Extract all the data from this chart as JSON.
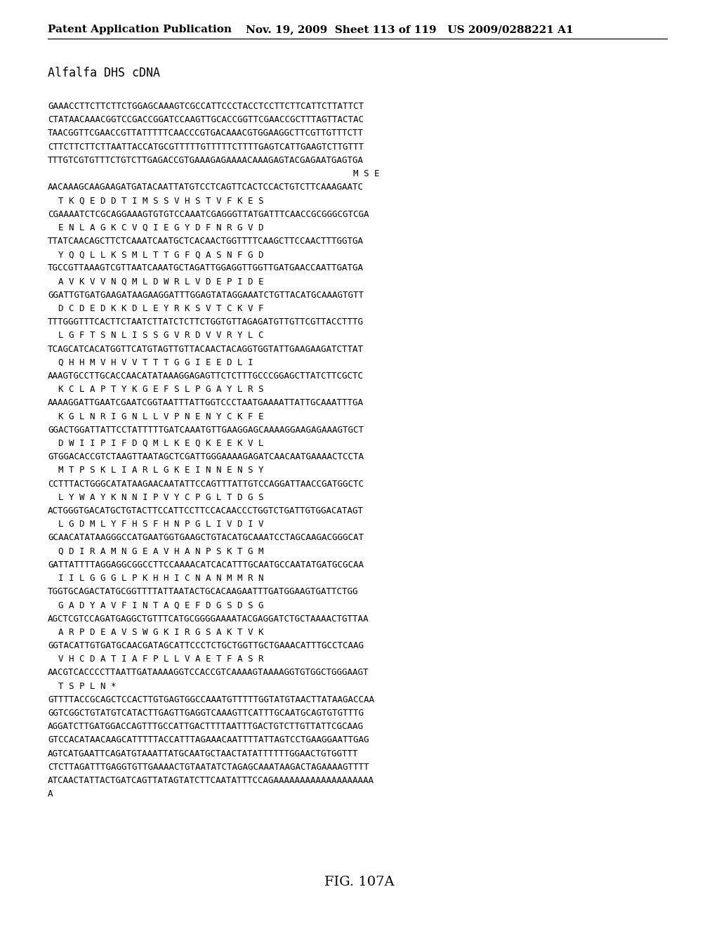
{
  "header_left": "Patent Application Publication",
  "header_right": "Nov. 19, 2009  Sheet 113 of 119   US 2009/0288221 A1",
  "title": "Alfalfa DHS cDNA",
  "figure_label": "FIG. 107A",
  "content_lines": [
    "GAAACCTTCTTCTTCTGGAGCAAAGTCGCCATTCCCTACCTCCTTCTTCATTCTTATTCT",
    "CTATAACAAACGGTCCGACCGGATCCAAGTTGCACCGGTTCGAACCGCTTTAGTTACTAC",
    "TAACGGTTCGAACCGTTATTTTTCAACCCGTGACAAACGTGGAAGGCTTCGTTGTTTCTT",
    "CTTCTTCTTCTTAATTACCATGCGTTTTTGTTTTTCTTTTGAGTCATTGAAGTCTTGTTT",
    "TTTGTCGTGTTTCTGTCTTGAGACCGTGAAAGAGAAAACAAAGAGTACGAGAATGAGTGA",
    "                                                          M S E",
    "AACAAAGCAAGAAGATGATACAATTATGTCCTCAGTTCACTCCACTGTCTTCAAAGAATC",
    "  T K Q E D D T I M S S V H S T V F K E S",
    "CGAAAATCTCGCAGGAAAGTGTGTCCAAATCGAGGGTTATGATTTCAACCGCGGGCGTCGA",
    "  E N L A G K C V Q I E G Y D F N R G V D",
    "TTATCAACAGCTTCTCAAATCAATGCTCACAACTGGTTTTCAAGCTTCCAACTTTGGTGA",
    "  Y Q Q L L K S M L T T G F Q A S N F G D",
    "TGCCGTTAAAGTCGTTAATCAAATGCTAGATTGGAGGTTGGTTGATGAACCAATTGATGA",
    "  A V K V V N Q M L D W R L V D E P I D E",
    "GGATTGTGATGAAGATAAGAAGGATTTGGAGTATAGGAAATCTGTTACATGCAAAGTGTT",
    "  D C D E D K K D L E Y R K S V T C K V F",
    "TTTGGGTTTCACTTCTAATCTTATCTCTTCTGGTGTTAGAGATGTTGTTCGTTACCTTTG",
    "  L G F T S N L I S S G V R D V V R Y L C",
    "TCAGCATCACATGGTTCATGTAGTTGTTACAACTACAGGTGGTATTGAAGAAGATCTTAT",
    "  Q H H M V H V V T T T G G I E E D L I",
    "AAAGTGCCTTGCACCAACATATAAAGGAGAGTTCTCTTTGCCCGGAGCTTATCTTCGCTC",
    "  K C L A P T Y K G E F S L P G A Y L R S",
    "AAAAGGATTGAATCGAATCGGTAATTTATTGGTCCCTAATGAAAATTATTGCAAATTTGA",
    "  K G L N R I G N L L V P N E N Y C K F E",
    "GGACTGGATTATTCCTATTTTTGATCAAATGTTGAAGGAGCAAAAGGAAGAGAAAGTGCT",
    "  D W I I P I F D Q M L K E Q K E E K V L",
    "GTGGACACCGTCTAAGTTAATAGCTCGATTGGGAAAAGAGATCAACAATGAAAACTCCTA",
    "  M T P S K L I A R L G K E I N N E N S Y",
    "CCTTTACTGGGCATATAAGAACAATATTCCAGTTTATTGTCCAGGATTAACCGATGGCTC",
    "  L Y W A Y K N N I P V Y C P G L T D G S",
    "ACTGGGTGACATGCTGTACTTCCATTCCTTCCACAACCCTGGTCTGATTGTGGACATAGT",
    "  L G D M L Y F H S F H N P G L I V D I V",
    "GCAACATATAAGGGCCATGAATGGTGAAGCTGTACATGCAAATCCTAGCAAGACGGGCAT",
    "  Q D I R A M N G E A V H A N P S K T G M",
    "GATTATTTTAGGAGGCGGCCTTCCAAAACATCACATTTGCAATGCCAATATGATGCGCAA",
    "  I I L G G G L P K H H I C N A N M M R N",
    "TGGTGCAGACTATGCGGTTTTATTAATACTGCACAAGAATTTGATGGAAGTGATTCTGG",
    "  G A D Y A V F I N T A Q E F D G S D S G",
    "AGCTCGTCCAGATGAGGCTGTTTCATGCGGGGAAAATACGAGGATCTGCTAAAACTGTTAA",
    "  A R P D E A V S W G K I R G S A K T V K",
    "GGTACATTGTGATGCAACGATAGCATTCCCTCTGCTGGTTGCTGAAACATTTGCCTCAAG",
    "  V H C D A T I A F P L L V A E T F A S R",
    "AACGTCACCCCTTAATTGATAAAAGGTCCACCGTCAAAAGTAAAAGGTGTGGCTGGGAAGT",
    "  T S P L N *",
    "GTTTTACCGCAGCTCCACTTGTGAGTGGCCAAATGTTTTTGGTATGTAACTTATAAGACCAA",
    "GGTCGGCTGTATGTCATACTTGAGTTGAGGTCAAAGTTCATTTGCAATGCAGTGTGTTTG",
    "AGGATCTTGATGGACCAGTTTGCCATTGACTTTTAATTTGACTGTCTTGTTATTCGCAAG",
    "GTCCACATAACAAGCATTTTTACCATTTAGAAACAATTTTATTAGTCCTGAAGGAATTGAG",
    "AGTCATGAATTCAGATGTAAATTATGCAATGCTAACTATATTTTTTGGAACTGTGGTTT",
    "CTCTTAGATTTGAGGTGTTGAAAACTGTAATATCTAGAGCAAATAAGACTAGAAAAGTTTT",
    "ATCAACTATTACTGATCAGTTATAGTATCTTCAATATTTCCAGAAAAAAAAAAAAAAAAAAA",
    "A"
  ],
  "background_color": "#ffffff",
  "text_color": "#000000",
  "header_fontsize": 11,
  "title_fontsize": 12,
  "content_fontsize": 9.0,
  "figure_fontsize": 14
}
